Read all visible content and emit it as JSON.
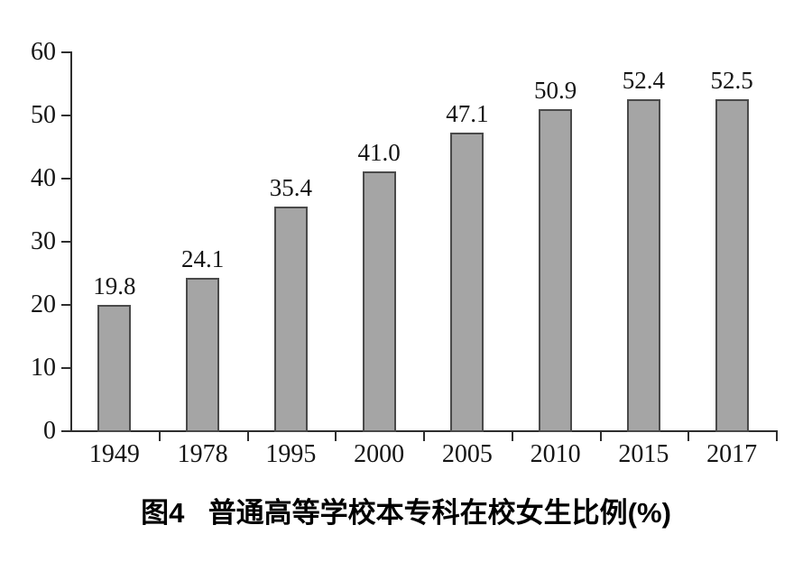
{
  "chart_data": {
    "type": "bar",
    "title": "图4 普通高等学校本专科在校女生比例(%)",
    "categories": [
      "1949",
      "1978",
      "1995",
      "2000",
      "2005",
      "2010",
      "2015",
      "2017"
    ],
    "values": [
      19.8,
      24.1,
      35.4,
      41.0,
      47.1,
      50.9,
      52.4,
      52.5
    ],
    "value_labels": [
      "19.8",
      "24.1",
      "35.4",
      "41.0",
      "47.1",
      "50.9",
      "52.4",
      "52.5"
    ],
    "xlabel": "",
    "ylabel": "",
    "ylim": [
      0,
      60
    ],
    "yticks": [
      0,
      10,
      20,
      30,
      40,
      50,
      60
    ],
    "ytick_labels": [
      "0",
      "10",
      "20",
      "30",
      "40",
      "50",
      "60"
    ],
    "grid": false,
    "legend": "none",
    "bar_color": "#a5a5a5",
    "bar_border_color": "#4a4a4a",
    "axis_color": "#2e2e2e",
    "text_color": "#141414",
    "background_color": "#ffffff"
  },
  "caption": {
    "figure_label": "图4",
    "text": "普通高等学校本专科在校女生比例(%)"
  }
}
